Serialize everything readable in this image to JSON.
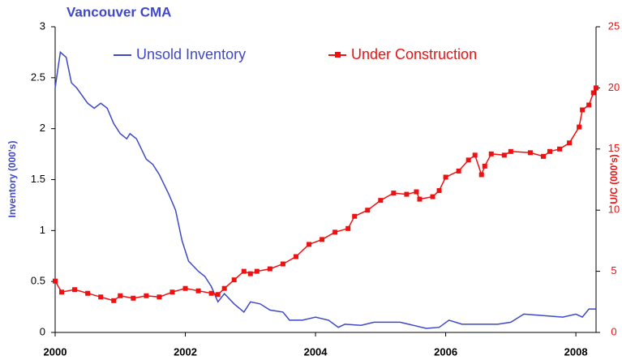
{
  "chart_data": {
    "type": "line",
    "title": "Vancouver CMA",
    "ylabel": "Inventory (000's)",
    "y2label": "U/C (000's)",
    "xlim": [
      2000,
      2008.31
    ],
    "xticks": [
      2000,
      2002,
      2004,
      2006,
      2008
    ],
    "ylim": [
      0,
      3
    ],
    "yticks": [
      0,
      0.5,
      1,
      1.5,
      2,
      2.5,
      3
    ],
    "y2lim": [
      0,
      25
    ],
    "y2ticks": [
      0,
      5,
      10,
      15,
      20,
      25
    ],
    "grid": false,
    "legend": "top",
    "series": [
      {
        "name": "Unsold Inventory",
        "color": "#3f48c8",
        "axis": "y",
        "marker": "none",
        "x": [
          2000,
          2000.08,
          2000.17,
          2000.25,
          2000.33,
          2000.5,
          2000.6,
          2000.7,
          2000.8,
          2000.9,
          2001,
          2001.1,
          2001.15,
          2001.25,
          2001.4,
          2001.5,
          2001.6,
          2001.75,
          2001.85,
          2001.95,
          2002.05,
          2002.2,
          2002.3,
          2002.4,
          2002.5,
          2002.6,
          2002.75,
          2002.9,
          2003,
          2003.15,
          2003.3,
          2003.5,
          2003.6,
          2003.8,
          2004,
          2004.2,
          2004.35,
          2004.45,
          2004.7,
          2004.9,
          2005.1,
          2005.3,
          2005.5,
          2005.7,
          2005.9,
          2006.05,
          2006.25,
          2006.5,
          2006.8,
          2007,
          2007.2,
          2007.4,
          2007.6,
          2007.8,
          2008,
          2008.1,
          2008.2,
          2008.31
        ],
        "values": [
          2.4,
          2.75,
          2.7,
          2.45,
          2.4,
          2.25,
          2.2,
          2.25,
          2.2,
          2.05,
          1.95,
          1.9,
          1.95,
          1.9,
          1.7,
          1.65,
          1.55,
          1.35,
          1.2,
          0.9,
          0.7,
          0.6,
          0.55,
          0.45,
          0.3,
          0.38,
          0.28,
          0.2,
          0.3,
          0.28,
          0.22,
          0.2,
          0.12,
          0.12,
          0.15,
          0.12,
          0.05,
          0.08,
          0.07,
          0.1,
          0.1,
          0.1,
          0.07,
          0.04,
          0.05,
          0.12,
          0.08,
          0.08,
          0.08,
          0.1,
          0.18,
          0.17,
          0.16,
          0.15,
          0.18,
          0.15,
          0.23,
          0.23
        ]
      },
      {
        "name": "Under Construction",
        "color": "#ee1111",
        "axis": "y2",
        "marker": "square",
        "x": [
          2000,
          2000.1,
          2000.3,
          2000.5,
          2000.7,
          2000.9,
          2001,
          2001.2,
          2001.4,
          2001.6,
          2001.8,
          2002,
          2002.2,
          2002.4,
          2002.5,
          2002.6,
          2002.75,
          2002.9,
          2003,
          2003.1,
          2003.3,
          2003.5,
          2003.7,
          2003.9,
          2004.1,
          2004.3,
          2004.5,
          2004.6,
          2004.8,
          2005,
          2005.2,
          2005.4,
          2005.55,
          2005.6,
          2005.8,
          2005.9,
          2006,
          2006.2,
          2006.35,
          2006.45,
          2006.55,
          2006.6,
          2006.7,
          2006.9,
          2007,
          2007.3,
          2007.5,
          2007.6,
          2007.75,
          2007.9,
          2008.05,
          2008.1,
          2008.2,
          2008.27,
          2008.31
        ],
        "values": [
          4.2,
          3.3,
          3.5,
          3.2,
          2.9,
          2.6,
          3.0,
          2.8,
          3.0,
          2.9,
          3.3,
          3.6,
          3.4,
          3.2,
          3.1,
          3.6,
          4.3,
          5.0,
          4.8,
          5.0,
          5.2,
          5.6,
          6.2,
          7.2,
          7.6,
          8.2,
          8.5,
          9.5,
          10.0,
          10.8,
          11.4,
          11.3,
          11.5,
          10.9,
          11.1,
          11.6,
          12.7,
          13.2,
          14.1,
          14.5,
          12.9,
          13.6,
          14.6,
          14.5,
          14.8,
          14.7,
          14.4,
          14.8,
          15.0,
          15.5,
          16.8,
          18.2,
          18.6,
          19.6,
          20.0
        ]
      }
    ]
  }
}
